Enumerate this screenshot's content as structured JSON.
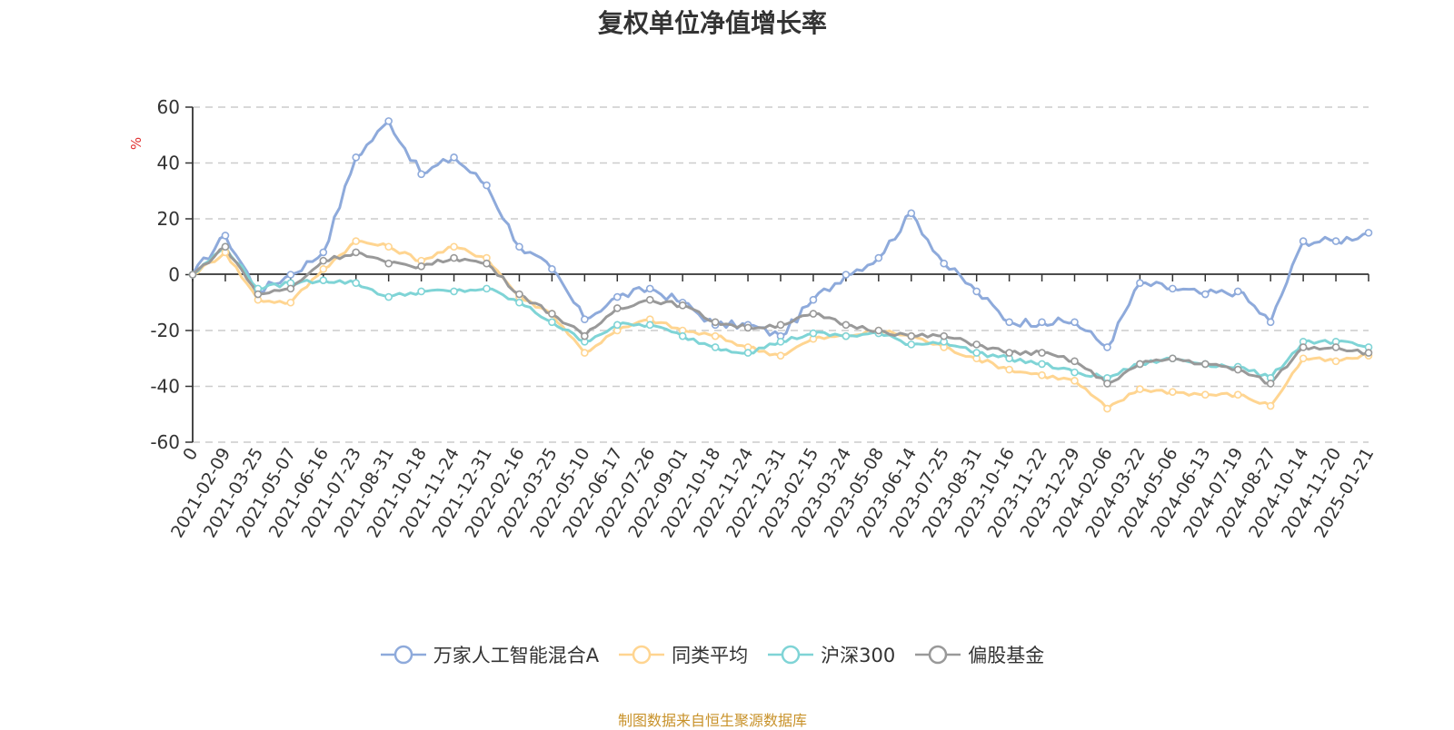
{
  "chart_data": {
    "type": "line",
    "title": "复权单位净值增长率",
    "ylabel": "%",
    "ylim": [
      -60,
      60
    ],
    "yticks": [
      60,
      40,
      20,
      0,
      -20,
      -40,
      -60
    ],
    "categories": [
      "0",
      "2021-02-09",
      "2021-03-25",
      "2021-05-07",
      "2021-06-16",
      "2021-07-23",
      "2021-08-31",
      "2021-10-18",
      "2021-11-24",
      "2021-12-31",
      "2022-02-16",
      "2022-03-25",
      "2022-05-10",
      "2022-06-17",
      "2022-07-26",
      "2022-09-01",
      "2022-10-18",
      "2022-11-24",
      "2022-12-31",
      "2023-02-15",
      "2023-03-24",
      "2023-05-08",
      "2023-06-14",
      "2023-07-25",
      "2023-08-31",
      "2023-10-16",
      "2023-11-22",
      "2023-12-29",
      "2024-02-06",
      "2024-03-22",
      "2024-05-06",
      "2024-06-13",
      "2024-07-19",
      "2024-08-27",
      "2024-10-14",
      "2024-11-20",
      "2025-01-21"
    ],
    "series": [
      {
        "name": "万家人工智能混合A",
        "color": "#8eaadb",
        "values": [
          0,
          14,
          -6,
          0,
          8,
          42,
          55,
          36,
          42,
          32,
          10,
          2,
          -16,
          -8,
          -5,
          -10,
          -18,
          -18,
          -22,
          -9,
          0,
          6,
          22,
          4,
          -6,
          -17,
          -17,
          -17,
          -26,
          -3,
          -5,
          -7,
          -6,
          -17,
          12,
          12,
          15
        ]
      },
      {
        "name": "同类平均",
        "color": "#ffd591",
        "values": [
          0,
          8,
          -9,
          -10,
          2,
          12,
          10,
          5,
          10,
          6,
          -8,
          -14,
          -28,
          -20,
          -16,
          -20,
          -22,
          -26,
          -29,
          -23,
          -22,
          -20,
          -22,
          -26,
          -30,
          -34,
          -36,
          -38,
          -48,
          -41,
          -42,
          -43,
          -43,
          -47,
          -30,
          -31,
          -29
        ]
      },
      {
        "name": "沪深300",
        "color": "#7fd4d6",
        "values": [
          0,
          10,
          -5,
          -3,
          -2,
          -3,
          -8,
          -6,
          -6,
          -5,
          -10,
          -17,
          -24,
          -18,
          -18,
          -22,
          -26,
          -28,
          -24,
          -21,
          -22,
          -21,
          -25,
          -24,
          -28,
          -30,
          -32,
          -35,
          -37,
          -32,
          -30,
          -32,
          -33,
          -37,
          -24,
          -24,
          -26
        ]
      },
      {
        "name": "偏股基金",
        "color": "#999999",
        "values": [
          0,
          10,
          -7,
          -5,
          5,
          8,
          4,
          3,
          6,
          4,
          -7,
          -14,
          -22,
          -12,
          -9,
          -11,
          -17,
          -19,
          -18,
          -14,
          -18,
          -20,
          -22,
          -22,
          -25,
          -28,
          -28,
          -31,
          -39,
          -32,
          -30,
          -32,
          -34,
          -39,
          -26,
          -26,
          -28
        ]
      }
    ],
    "grid": true,
    "legend_position": "bottom"
  },
  "source_text": "制图数据来自恒生聚源数据库"
}
